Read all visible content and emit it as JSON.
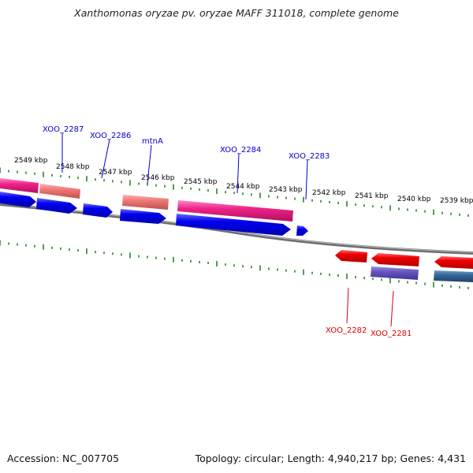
{
  "title": "Xanthomonas oryzae pv. oryzae MAFF 311018, complete genome",
  "accession": "Accession: NC_007705",
  "genome_info": "Topology: circular; Length: 4,940,217 bp; Genes: 4,431",
  "kbp_labels": [
    "2549 kbp",
    "2548 kbp",
    "2547 kbp",
    "2546 kbp",
    "2545 kbp",
    "2544 kbp",
    "2543 kbp",
    "2542 kbp",
    "2541 kbp",
    "2540 kbp",
    "2539 kbp"
  ],
  "forward_gene_labels": [
    "XOO_2287",
    "XOO_2286",
    "mtnA",
    "XOO_2284",
    "XOO_2283"
  ],
  "reverse_gene_labels": [
    "XOO_2282",
    "XOO_2281"
  ],
  "colors": {
    "forward_label": "#0000cc",
    "reverse_label": "#dd0000",
    "forward_cds": "#0000ee",
    "reverse_cds": "#ee0000",
    "forward_feature_pink": "#ee2288",
    "forward_feature_salmon": "#ee7777",
    "reverse_feature_purple": "#6655bb",
    "reverse_feature_teal": "#336699",
    "backbone": "#888888",
    "ticks": "#228822"
  }
}
